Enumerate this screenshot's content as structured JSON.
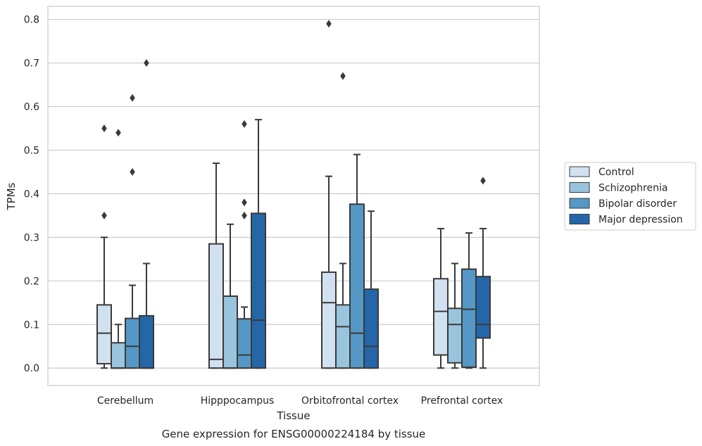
{
  "chart_data": {
    "type": "boxplot",
    "title": "",
    "caption": "Gene expression for ENSG00000224184 by tissue",
    "xlabel": "Tissue",
    "ylabel": "TPMs",
    "ylim": [
      -0.04,
      0.83
    ],
    "yticks": [
      0.0,
      0.1,
      0.2,
      0.3,
      0.4,
      0.5,
      0.6,
      0.7,
      0.8
    ],
    "ytick_labels": [
      "0.0",
      "0.1",
      "0.2",
      "0.3",
      "0.4",
      "0.5",
      "0.6",
      "0.7",
      "0.8"
    ],
    "grid": "horizontal",
    "legend_position": "right",
    "categories": [
      "Cerebellum",
      "Hipppocampus",
      "Orbitofrontal cortex",
      "Prefrontal cortex"
    ],
    "series": [
      {
        "name": "Control",
        "color": "#d2e1f0",
        "boxes": [
          {
            "whislo": 0.0,
            "q1": 0.01,
            "med": 0.08,
            "q3": 0.145,
            "whishi": 0.3,
            "fliers": [
              0.35,
              0.55
            ]
          },
          {
            "whislo": 0.0,
            "q1": 0.0,
            "med": 0.02,
            "q3": 0.285,
            "whishi": 0.47,
            "fliers": []
          },
          {
            "whislo": 0.0,
            "q1": 0.0,
            "med": 0.15,
            "q3": 0.22,
            "whishi": 0.44,
            "fliers": [
              0.79
            ]
          },
          {
            "whislo": 0.0,
            "q1": 0.03,
            "med": 0.13,
            "q3": 0.205,
            "whishi": 0.32,
            "fliers": []
          }
        ]
      },
      {
        "name": "Schizophrenia",
        "color": "#9ac4dd",
        "boxes": [
          {
            "whislo": 0.0,
            "q1": 0.0,
            "med": 0.0,
            "q3": 0.058,
            "whishi": 0.1,
            "fliers": [
              0.54
            ]
          },
          {
            "whislo": 0.0,
            "q1": 0.0,
            "med": 0.0,
            "q3": 0.165,
            "whishi": 0.33,
            "fliers": []
          },
          {
            "whislo": 0.0,
            "q1": 0.0,
            "med": 0.095,
            "q3": 0.145,
            "whishi": 0.24,
            "fliers": [
              0.67
            ]
          },
          {
            "whislo": 0.0,
            "q1": 0.012,
            "med": 0.1,
            "q3": 0.137,
            "whishi": 0.24,
            "fliers": []
          }
        ]
      },
      {
        "name": "Bipolar disorder",
        "color": "#5698c5",
        "boxes": [
          {
            "whislo": 0.0,
            "q1": 0.0,
            "med": 0.05,
            "q3": 0.114,
            "whishi": 0.19,
            "fliers": [
              0.45,
              0.62
            ]
          },
          {
            "whislo": 0.0,
            "q1": 0.0,
            "med": 0.03,
            "q3": 0.113,
            "whishi": 0.14,
            "fliers": [
              0.35,
              0.38,
              0.56
            ]
          },
          {
            "whislo": 0.0,
            "q1": 0.0,
            "med": 0.08,
            "q3": 0.376,
            "whishi": 0.49,
            "fliers": []
          },
          {
            "whislo": 0.0,
            "q1": 0.002,
            "med": 0.135,
            "q3": 0.227,
            "whishi": 0.31,
            "fliers": []
          }
        ]
      },
      {
        "name": "Major depression",
        "color": "#2466a8",
        "boxes": [
          {
            "whislo": 0.0,
            "q1": 0.0,
            "med": 0.0,
            "q3": 0.12,
            "whishi": 0.24,
            "fliers": [
              0.7
            ]
          },
          {
            "whislo": 0.0,
            "q1": 0.0,
            "med": 0.11,
            "q3": 0.355,
            "whishi": 0.57,
            "fliers": []
          },
          {
            "whislo": 0.0,
            "q1": 0.0,
            "med": 0.05,
            "q3": 0.181,
            "whishi": 0.36,
            "fliers": []
          },
          {
            "whislo": 0.0,
            "q1": 0.069,
            "med": 0.1,
            "q3": 0.21,
            "whishi": 0.32,
            "fliers": [
              0.43
            ]
          }
        ]
      }
    ]
  }
}
